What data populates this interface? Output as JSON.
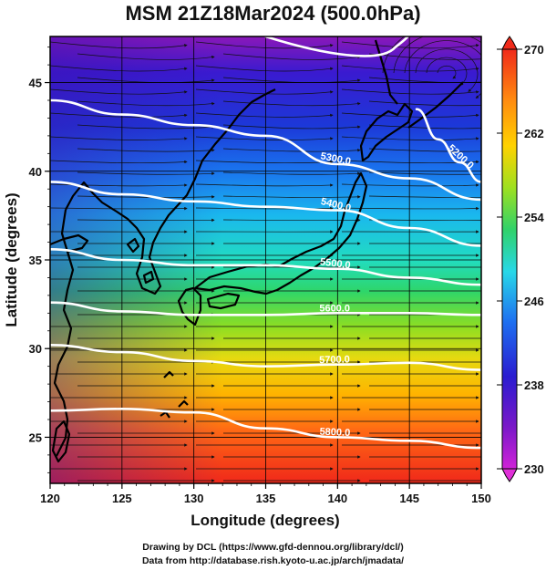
{
  "title": "MSM 21Z18Mar2024 (500.0hPa)",
  "footer": {
    "line1": "Drawing by DCL (https://www.gfd-dennou.org/library/dcl/)",
    "line2": "Data from http://database.rish.kyoto-u.ac.jp/arch/jmadata/"
  },
  "axes": {
    "xlabel": "Longitude (degrees)",
    "ylabel": "Latitude  (degrees)",
    "xlim": [
      120,
      150
    ],
    "ylim": [
      22.4,
      47.6
    ],
    "xticks": [
      "120",
      "125",
      "130",
      "135",
      "140",
      "145",
      "150"
    ],
    "yticks": [
      "25",
      "30",
      "35",
      "40",
      "45"
    ]
  },
  "colorbar": {
    "min": 230,
    "max": 270,
    "tick_labels": [
      "270",
      "262",
      "254",
      "246",
      "238",
      "230"
    ],
    "colors": [
      "#8a0fb0",
      "#2a1cd0",
      "#1e6ff0",
      "#28d8e8",
      "#30d26a",
      "#9ee020",
      "#ffd200",
      "#ff8a10",
      "#f02a1a"
    ]
  },
  "chart_data": {
    "type": "heatmap",
    "quantity": "temperature (K) shading, geopotential height contours, wind streamlines",
    "level": "500.0hPa",
    "colorbar_range": [
      230,
      270
    ],
    "contours": [
      {
        "label": "5300.0",
        "lon": [
          120,
          125,
          130,
          135,
          140,
          145,
          150
        ],
        "lat": [
          44.0,
          43.2,
          42.6,
          42.0,
          40.4,
          39.6,
          38.4
        ]
      },
      {
        "label": "5200.0",
        "lon": [
          145.5,
          147,
          148.5,
          150
        ],
        "lat": [
          43.5,
          41.8,
          40.5,
          39.4
        ]
      },
      {
        "label": "5400.0",
        "lon": [
          120,
          125,
          130,
          135,
          140,
          145,
          150
        ],
        "lat": [
          39.4,
          38.7,
          38.3,
          38.0,
          37.8,
          36.8,
          35.8
        ]
      },
      {
        "label": "5500.0",
        "lon": [
          120,
          125,
          130,
          135,
          140,
          145,
          150
        ],
        "lat": [
          35.6,
          35.0,
          34.7,
          34.7,
          34.5,
          34.0,
          33.6
        ]
      },
      {
        "label": "5600.0",
        "lon": [
          120,
          125,
          130,
          135,
          140,
          145,
          150
        ],
        "lat": [
          32.6,
          32.1,
          31.9,
          31.9,
          32.0,
          32.0,
          31.9
        ]
      },
      {
        "label": "5700.0",
        "lon": [
          120,
          125,
          130,
          135,
          140,
          145,
          150
        ],
        "lat": [
          30.2,
          29.8,
          29.3,
          29.0,
          29.1,
          29.2,
          28.8
        ]
      },
      {
        "label": "5800.0",
        "lon": [
          120,
          125,
          130,
          135,
          140,
          145,
          150
        ],
        "lat": [
          26.5,
          26.6,
          26.4,
          25.5,
          25.0,
          24.8,
          24.4
        ]
      }
    ]
  }
}
